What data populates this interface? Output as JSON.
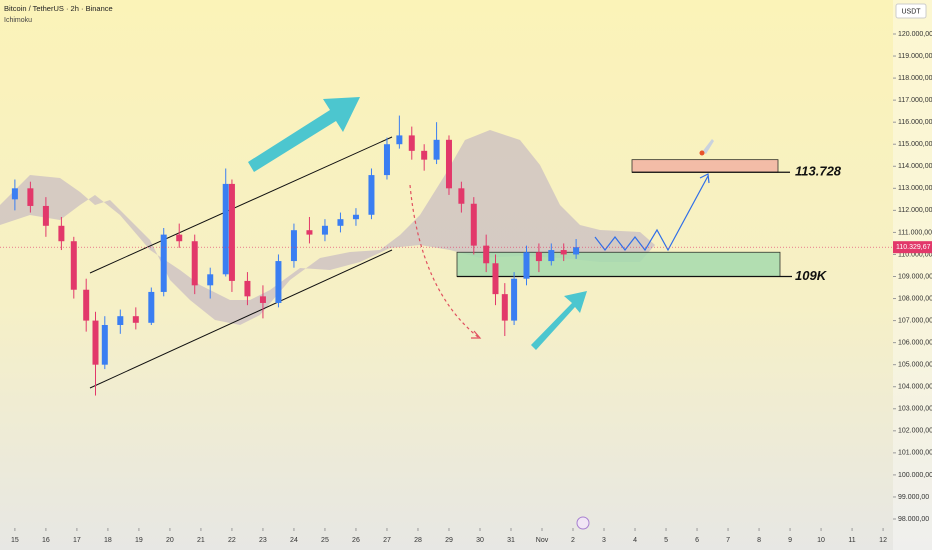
{
  "chart_data": {
    "type": "candlestick",
    "title": "Bitcoin / TetherUS · 2h · Binance",
    "indicator": "Ichimoku",
    "currency": "USDT",
    "up_color": "#3a7ef2",
    "down_color": "#e2386a",
    "x": [
      0.0,
      0.5,
      1.0,
      1.5,
      1.9,
      2.3,
      2.6,
      2.9,
      3.4,
      3.9,
      4.4,
      4.8,
      5.3,
      5.8,
      6.3,
      6.8,
      7.0,
      7.5,
      8.0,
      8.5,
      9.0,
      9.5,
      10.0,
      10.5,
      11.0,
      11.5,
      12.0,
      12.4,
      12.8,
      13.2,
      13.6,
      14.0,
      14.4,
      14.8,
      15.2,
      15.5,
      15.8,
      16.1,
      16.5,
      16.9,
      17.3,
      17.7,
      18.1
    ],
    "open": [
      112500,
      113000,
      112200,
      111300,
      110600,
      108400,
      107000,
      105000,
      106800,
      107200,
      106900,
      108300,
      110900,
      110600,
      108600,
      109100,
      113200,
      108800,
      108100,
      107800,
      109700,
      111100,
      110900,
      111300,
      111600,
      111800,
      113600,
      115000,
      115400,
      114700,
      114300,
      115200,
      113000,
      112300,
      110400,
      109600,
      108200,
      107000,
      108900,
      110100,
      109700,
      110200,
      110000
    ],
    "high": [
      113400,
      113300,
      112600,
      111700,
      110800,
      108900,
      107400,
      107200,
      107500,
      107600,
      108500,
      111200,
      111400,
      110900,
      109400,
      113900,
      113400,
      109200,
      108600,
      110000,
      111400,
      111700,
      111600,
      111900,
      112100,
      113900,
      115300,
      116300,
      115800,
      115000,
      116000,
      115400,
      113300,
      112600,
      110900,
      110000,
      108700,
      109200,
      110400,
      110500,
      110500,
      110500,
      110700
    ],
    "low": [
      112000,
      111900,
      110800,
      110200,
      108000,
      106500,
      103600,
      104800,
      106400,
      106600,
      106800,
      108100,
      110300,
      108200,
      108000,
      109000,
      108300,
      107700,
      107100,
      107600,
      109400,
      110500,
      110600,
      111000,
      111300,
      111600,
      113400,
      114800,
      114300,
      113800,
      114100,
      112700,
      111900,
      110000,
      109200,
      107700,
      106300,
      106800,
      108600,
      109200,
      109500,
      109700,
      109800
    ],
    "close": [
      113000,
      112200,
      111300,
      110600,
      108400,
      107000,
      105000,
      106800,
      107200,
      106900,
      108300,
      110900,
      110600,
      108600,
      109100,
      113200,
      108800,
      108100,
      107800,
      109700,
      111100,
      110900,
      111300,
      111600,
      111800,
      113600,
      115000,
      115400,
      114700,
      114300,
      115200,
      113000,
      112300,
      110400,
      109600,
      108200,
      107000,
      108900,
      110100,
      109700,
      110200,
      110000,
      110330
    ],
    "xlim": [
      -0.48,
      28.32
    ],
    "xticks": [
      {
        "value": 0,
        "label": "15"
      },
      {
        "value": 1,
        "label": "16"
      },
      {
        "value": 2,
        "label": "17"
      },
      {
        "value": 3,
        "label": "18"
      },
      {
        "value": 4,
        "label": "19"
      },
      {
        "value": 5,
        "label": "20"
      },
      {
        "value": 6,
        "label": "21"
      },
      {
        "value": 7,
        "label": "22"
      },
      {
        "value": 8,
        "label": "23"
      },
      {
        "value": 9,
        "label": "24"
      },
      {
        "value": 10,
        "label": "25"
      },
      {
        "value": 11,
        "label": "26"
      },
      {
        "value": 12,
        "label": "27"
      },
      {
        "value": 13,
        "label": "28"
      },
      {
        "value": 14,
        "label": "29"
      },
      {
        "value": 15,
        "label": "30"
      },
      {
        "value": 16,
        "label": "31"
      },
      {
        "value": 17,
        "label": "Nov"
      },
      {
        "value": 18,
        "label": "2"
      },
      {
        "value": 19,
        "label": "3"
      },
      {
        "value": 20,
        "label": "4"
      },
      {
        "value": 21,
        "label": "5"
      },
      {
        "value": 22,
        "label": "6"
      },
      {
        "value": 23,
        "label": "7"
      },
      {
        "value": 24,
        "label": "8"
      },
      {
        "value": 25,
        "label": "9"
      },
      {
        "value": 26,
        "label": "10"
      },
      {
        "value": 27,
        "label": "11"
      },
      {
        "value": 28,
        "label": "12"
      }
    ],
    "ylim": [
      97592,
      121542
    ],
    "yticks": [
      {
        "value": 98000,
        "label": "98.000,00"
      },
      {
        "value": 99000,
        "label": "99.000,00"
      },
      {
        "value": 100000,
        "label": "100.000,00"
      },
      {
        "value": 101000,
        "label": "101.000,00"
      },
      {
        "value": 102000,
        "label": "102.000,00"
      },
      {
        "value": 103000,
        "label": "103.000,00"
      },
      {
        "value": 104000,
        "label": "104.000,00"
      },
      {
        "value": 105000,
        "label": "105.000,00"
      },
      {
        "value": 106000,
        "label": "106.000,00"
      },
      {
        "value": 107000,
        "label": "107.000,00"
      },
      {
        "value": 108000,
        "label": "108.000,00"
      },
      {
        "value": 109000,
        "label": "109.000,00"
      },
      {
        "value": 110000,
        "label": "110.000,00"
      },
      {
        "value": 111000,
        "label": "111.000,00"
      },
      {
        "value": 112000,
        "label": "112.000,00"
      },
      {
        "value": 113000,
        "label": "113.000,00"
      },
      {
        "value": 114000,
        "label": "114.000,00"
      },
      {
        "value": 115000,
        "label": "115.000,00"
      },
      {
        "value": 116000,
        "label": "116.000,00"
      },
      {
        "value": 117000,
        "label": "117.000,00"
      },
      {
        "value": 118000,
        "label": "118.000,00"
      },
      {
        "value": 119000,
        "label": "119.000,00"
      },
      {
        "value": 120000,
        "label": "120.000,00"
      }
    ],
    "last_price": {
      "value": 110329.67,
      "label": "110.329,67"
    },
    "zones": [
      {
        "top": 114300,
        "bottom": 113728,
        "color": "#f3b3a3"
      },
      {
        "top": 110100,
        "bottom": 109000,
        "color": "#a6dcae"
      }
    ],
    "annotations": [
      {
        "text": "113.728",
        "y": 113728
      },
      {
        "text": "109K",
        "y": 109000
      }
    ]
  }
}
